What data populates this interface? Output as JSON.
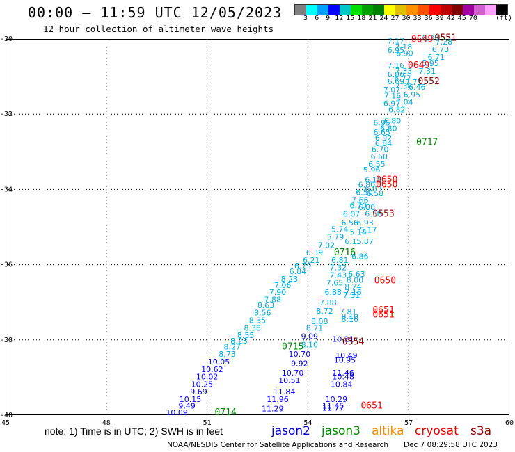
{
  "header": {
    "title": "00:00 — 11:59 UTC 12/05/2023",
    "subtitle": "12 hour collection of altimeter wave heights"
  },
  "colorbar": {
    "colors": [
      "#7f7f7f",
      "#00ffff",
      "#00a0ff",
      "#0000ff",
      "#00c8c8",
      "#00e000",
      "#00a000",
      "#008000",
      "#ffff00",
      "#e0c000",
      "#ff9000",
      "#ff5000",
      "#ff0000",
      "#c00000",
      "#800000",
      "#a000a0",
      "#d060d0",
      "#ffa0ff",
      "#000000"
    ],
    "ticks": [
      "3",
      "6",
      "9",
      "12",
      "15",
      "18",
      "21",
      "24",
      "27",
      "30",
      "33",
      "36",
      "39",
      "42",
      "45",
      "70"
    ],
    "unit": "(ft)"
  },
  "axes": {
    "lat_labels": [
      "-30",
      "-32",
      "-34",
      "-36",
      "-38",
      "-40"
    ],
    "lon_labels": [
      "45",
      "48",
      "51",
      "54",
      "57",
      "60"
    ]
  },
  "map": {
    "swh_ft_color": {
      "cyan": "#00aadd",
      "blue": "#0000ff",
      "green": "#008000",
      "red": "#ff0000",
      "darkred": "#800000"
    },
    "labels": [
      {
        "text": "7.17",
        "lat": -30.12,
        "lon": 56.62,
        "c": "cyan"
      },
      {
        "text": "6.95",
        "lat": -30.37,
        "lon": 56.62,
        "c": "cyan"
      },
      {
        "text": "7.18",
        "lat": -30.28,
        "lon": 56.85,
        "c": "cyan"
      },
      {
        "text": "6.90",
        "lat": -30.45,
        "lon": 56.88,
        "c": "cyan"
      },
      {
        "text": "6.73",
        "lat": -30.35,
        "lon": 57.95,
        "c": "cyan"
      },
      {
        "text": "6.71",
        "lat": -30.55,
        "lon": 57.82,
        "c": "cyan"
      },
      {
        "text": "7.28",
        "lat": -30.15,
        "lon": 58.05,
        "c": "cyan"
      },
      {
        "text": "6.35",
        "lat": -30.05,
        "lon": 57.65,
        "c": "cyan"
      },
      {
        "text": "7.16",
        "lat": -30.78,
        "lon": 56.62,
        "c": "cyan"
      },
      {
        "text": "5.95",
        "lat": -30.72,
        "lon": 57.65,
        "c": "cyan"
      },
      {
        "text": "7.33",
        "lat": -30.92,
        "lon": 56.85,
        "c": "cyan"
      },
      {
        "text": "7.31",
        "lat": -30.92,
        "lon": 57.55,
        "c": "cyan"
      },
      {
        "text": "6.86",
        "lat": -31.02,
        "lon": 56.62,
        "c": "cyan"
      },
      {
        "text": "6.77",
        "lat": -31.12,
        "lon": 56.82,
        "c": "cyan"
      },
      {
        "text": "6.69",
        "lat": -31.2,
        "lon": 56.62,
        "c": "cyan"
      },
      {
        "text": "7.71",
        "lat": -31.22,
        "lon": 57.15,
        "c": "cyan"
      },
      {
        "text": "6.46",
        "lat": -31.35,
        "lon": 57.25,
        "c": "cyan"
      },
      {
        "text": "7.38",
        "lat": -31.32,
        "lon": 56.85,
        "c": "cyan"
      },
      {
        "text": "7.07",
        "lat": -31.42,
        "lon": 56.5,
        "c": "cyan"
      },
      {
        "text": "6.95",
        "lat": -31.55,
        "lon": 57.1,
        "c": "cyan"
      },
      {
        "text": "7.16",
        "lat": -31.58,
        "lon": 56.52,
        "c": "cyan"
      },
      {
        "text": "7.04",
        "lat": -31.75,
        "lon": 56.88,
        "c": "cyan"
      },
      {
        "text": "6.97",
        "lat": -31.78,
        "lon": 56.5,
        "c": "cyan"
      },
      {
        "text": "6.82",
        "lat": -31.95,
        "lon": 56.65,
        "c": "cyan"
      },
      {
        "text": "6.80",
        "lat": -32.25,
        "lon": 56.52,
        "c": "cyan"
      },
      {
        "text": "6.95",
        "lat": -32.3,
        "lon": 56.2,
        "c": "cyan"
      },
      {
        "text": "6.80",
        "lat": -32.45,
        "lon": 56.4,
        "c": "cyan"
      },
      {
        "text": "6.65",
        "lat": -32.55,
        "lon": 56.2,
        "c": "cyan"
      },
      {
        "text": "6.92",
        "lat": -32.7,
        "lon": 56.25,
        "c": "cyan"
      },
      {
        "text": "6.84",
        "lat": -32.85,
        "lon": 56.25,
        "c": "cyan"
      },
      {
        "text": "6.70",
        "lat": -33.0,
        "lon": 56.15,
        "c": "cyan"
      },
      {
        "text": "6.60",
        "lat": -33.2,
        "lon": 56.12,
        "c": "cyan"
      },
      {
        "text": "6.55",
        "lat": -33.4,
        "lon": 56.05,
        "c": "cyan"
      },
      {
        "text": "5.96",
        "lat": -33.55,
        "lon": 55.9,
        "c": "cyan"
      },
      {
        "text": "6.18",
        "lat": -33.82,
        "lon": 55.95,
        "c": "cyan"
      },
      {
        "text": "6.80",
        "lat": -33.95,
        "lon": 55.75,
        "c": "cyan"
      },
      {
        "text": "6.83",
        "lat": -34.05,
        "lon": 55.95,
        "c": "cyan"
      },
      {
        "text": "6.50",
        "lat": -34.15,
        "lon": 55.68,
        "c": "cyan"
      },
      {
        "text": "6.58",
        "lat": -34.18,
        "lon": 56.0,
        "c": "cyan"
      },
      {
        "text": "7.66",
        "lat": -34.35,
        "lon": 55.55,
        "c": "cyan"
      },
      {
        "text": "6.70",
        "lat": -34.5,
        "lon": 55.5,
        "c": "cyan"
      },
      {
        "text": "6.80",
        "lat": -34.55,
        "lon": 55.75,
        "c": "cyan"
      },
      {
        "text": "6.07",
        "lat": -34.72,
        "lon": 55.3,
        "c": "cyan"
      },
      {
        "text": "6.58",
        "lat": -34.72,
        "lon": 55.95,
        "c": "cyan"
      },
      {
        "text": "6.56",
        "lat": -34.95,
        "lon": 55.25,
        "c": "cyan"
      },
      {
        "text": "6.93",
        "lat": -34.95,
        "lon": 55.7,
        "c": "cyan"
      },
      {
        "text": "5.74",
        "lat": -35.13,
        "lon": 54.95,
        "c": "cyan"
      },
      {
        "text": "5.14",
        "lat": -35.2,
        "lon": 55.5,
        "c": "cyan"
      },
      {
        "text": "5.17",
        "lat": -35.15,
        "lon": 55.8,
        "c": "cyan"
      },
      {
        "text": "5.79",
        "lat": -35.33,
        "lon": 54.82,
        "c": "cyan"
      },
      {
        "text": "6.15",
        "lat": -35.45,
        "lon": 55.35,
        "c": "cyan"
      },
      {
        "text": "5.87",
        "lat": -35.45,
        "lon": 55.7,
        "c": "cyan"
      },
      {
        "text": "7.02",
        "lat": -35.55,
        "lon": 54.55,
        "c": "cyan"
      },
      {
        "text": "6.39",
        "lat": -35.75,
        "lon": 54.2,
        "c": "cyan"
      },
      {
        "text": "6.86",
        "lat": -35.85,
        "lon": 55.55,
        "c": "cyan"
      },
      {
        "text": "6.21",
        "lat": -35.95,
        "lon": 54.1,
        "c": "cyan"
      },
      {
        "text": "6.81",
        "lat": -35.95,
        "lon": 54.95,
        "c": "cyan"
      },
      {
        "text": "6.79",
        "lat": -36.1,
        "lon": 53.85,
        "c": "cyan"
      },
      {
        "text": "7.32",
        "lat": -36.15,
        "lon": 54.9,
        "c": "cyan"
      },
      {
        "text": "6.84",
        "lat": -36.25,
        "lon": 53.7,
        "c": "cyan"
      },
      {
        "text": "7.43",
        "lat": -36.35,
        "lon": 54.9,
        "c": "cyan"
      },
      {
        "text": "6.63",
        "lat": -36.32,
        "lon": 55.45,
        "c": "cyan"
      },
      {
        "text": "8.23",
        "lat": -36.45,
        "lon": 53.45,
        "c": "cyan"
      },
      {
        "text": "8.00",
        "lat": -36.48,
        "lon": 55.4,
        "c": "cyan"
      },
      {
        "text": "7.65",
        "lat": -36.55,
        "lon": 54.8,
        "c": "cyan"
      },
      {
        "text": "7.06",
        "lat": -36.62,
        "lon": 53.25,
        "c": "cyan"
      },
      {
        "text": "8.24",
        "lat": -36.65,
        "lon": 55.35,
        "c": "cyan"
      },
      {
        "text": "7.90",
        "lat": -36.8,
        "lon": 53.1,
        "c": "cyan"
      },
      {
        "text": "6.88",
        "lat": -36.8,
        "lon": 54.75,
        "c": "cyan"
      },
      {
        "text": "7.16",
        "lat": -36.8,
        "lon": 55.35,
        "c": "cyan"
      },
      {
        "text": "7.31",
        "lat": -36.88,
        "lon": 55.3,
        "c": "cyan"
      },
      {
        "text": "7.88",
        "lat": -37.0,
        "lon": 52.95,
        "c": "cyan"
      },
      {
        "text": "7.88",
        "lat": -37.08,
        "lon": 54.6,
        "c": "cyan"
      },
      {
        "text": "8.63",
        "lat": -37.15,
        "lon": 52.75,
        "c": "cyan"
      },
      {
        "text": "8.72",
        "lat": -37.3,
        "lon": 54.5,
        "c": "cyan"
      },
      {
        "text": "7.81",
        "lat": -37.32,
        "lon": 55.2,
        "c": "cyan"
      },
      {
        "text": "8.56",
        "lat": -37.35,
        "lon": 52.65,
        "c": "cyan"
      },
      {
        "text": "8.10",
        "lat": -37.45,
        "lon": 55.25,
        "c": "cyan"
      },
      {
        "text": "8.16",
        "lat": -37.52,
        "lon": 55.25,
        "c": "cyan"
      },
      {
        "text": "8.35",
        "lat": -37.55,
        "lon": 52.5,
        "c": "cyan"
      },
      {
        "text": "8.08",
        "lat": -37.58,
        "lon": 54.35,
        "c": "cyan"
      },
      {
        "text": "8.38",
        "lat": -37.75,
        "lon": 52.35,
        "c": "cyan"
      },
      {
        "text": "8.71",
        "lat": -37.75,
        "lon": 54.2,
        "c": "cyan"
      },
      {
        "text": "8.55",
        "lat": -37.95,
        "lon": 52.15,
        "c": "cyan"
      },
      {
        "text": "9.09",
        "lat": -37.98,
        "lon": 54.05,
        "c": "blue"
      },
      {
        "text": "8.23",
        "lat": -38.1,
        "lon": 51.95,
        "c": "cyan"
      },
      {
        "text": "8.10",
        "lat": -38.2,
        "lon": 54.05,
        "c": "cyan"
      },
      {
        "text": "8.27",
        "lat": -38.25,
        "lon": 51.75,
        "c": "cyan"
      },
      {
        "text": "10.21",
        "lat": -38.05,
        "lon": 55.05,
        "c": "blue"
      },
      {
        "text": "8.73",
        "lat": -38.45,
        "lon": 51.6,
        "c": "cyan"
      },
      {
        "text": "10.70",
        "lat": -38.45,
        "lon": 53.75,
        "c": "blue"
      },
      {
        "text": "10.49",
        "lat": -38.48,
        "lon": 55.15,
        "c": "blue"
      },
      {
        "text": "10.05",
        "lat": -38.65,
        "lon": 51.35,
        "c": "blue"
      },
      {
        "text": "9.92",
        "lat": -38.7,
        "lon": 53.75,
        "c": "blue"
      },
      {
        "text": "10.95",
        "lat": -38.6,
        "lon": 55.1,
        "c": "blue"
      },
      {
        "text": "10.62",
        "lat": -38.85,
        "lon": 51.15,
        "c": "blue"
      },
      {
        "text": "10.70",
        "lat": -38.95,
        "lon": 53.55,
        "c": "blue"
      },
      {
        "text": "11.46",
        "lat": -38.95,
        "lon": 55.05,
        "c": "blue"
      },
      {
        "text": "10.02",
        "lat": -39.05,
        "lon": 51.0,
        "c": "blue"
      },
      {
        "text": "10.51",
        "lat": -39.15,
        "lon": 53.45,
        "c": "blue"
      },
      {
        "text": "10.48",
        "lat": -39.05,
        "lon": 55.05,
        "c": "blue"
      },
      {
        "text": "10.25",
        "lat": -39.25,
        "lon": 50.85,
        "c": "blue"
      },
      {
        "text": "10.84",
        "lat": -39.25,
        "lon": 55.0,
        "c": "blue"
      },
      {
        "text": "9.69",
        "lat": -39.45,
        "lon": 50.75,
        "c": "blue"
      },
      {
        "text": "11.84",
        "lat": -39.45,
        "lon": 53.3,
        "c": "blue"
      },
      {
        "text": "10.15",
        "lat": -39.65,
        "lon": 50.5,
        "c": "blue"
      },
      {
        "text": "11.96",
        "lat": -39.65,
        "lon": 53.1,
        "c": "blue"
      },
      {
        "text": "10.29",
        "lat": -39.65,
        "lon": 54.85,
        "c": "blue"
      },
      {
        "text": "9.49",
        "lat": -39.82,
        "lon": 50.4,
        "c": "blue"
      },
      {
        "text": "11.29",
        "lat": -39.9,
        "lon": 52.95,
        "c": "blue"
      },
      {
        "text": "11.45",
        "lat": -39.82,
        "lon": 54.75,
        "c": "blue"
      },
      {
        "text": "11.77",
        "lat": -39.88,
        "lon": 54.75,
        "c": "blue"
      },
      {
        "text": "10.09",
        "lat": -40.0,
        "lon": 50.1,
        "c": "blue"
      }
    ],
    "times": [
      {
        "text": "0551",
        "lat": -30.05,
        "lon": 58.1,
        "c": "darkred"
      },
      {
        "text": "0649",
        "lat": -30.08,
        "lon": 57.4,
        "c": "red"
      },
      {
        "text": "0649",
        "lat": -30.78,
        "lon": 57.3,
        "c": "red"
      },
      {
        "text": "0552",
        "lat": -31.2,
        "lon": 57.6,
        "c": "darkred"
      },
      {
        "text": "0717",
        "lat": -32.82,
        "lon": 57.55,
        "c": "green"
      },
      {
        "text": "0650",
        "lat": -33.82,
        "lon": 56.35,
        "c": "red"
      },
      {
        "text": "0650",
        "lat": -33.95,
        "lon": 56.35,
        "c": "red"
      },
      {
        "text": "0553",
        "lat": -34.72,
        "lon": 56.25,
        "c": "darkred"
      },
      {
        "text": "0716",
        "lat": -35.75,
        "lon": 55.1,
        "c": "green"
      },
      {
        "text": "0650",
        "lat": -36.5,
        "lon": 56.3,
        "c": "red"
      },
      {
        "text": "0651",
        "lat": -37.28,
        "lon": 56.25,
        "c": "red"
      },
      {
        "text": "0651",
        "lat": -37.4,
        "lon": 56.25,
        "c": "red"
      },
      {
        "text": "0554",
        "lat": -38.12,
        "lon": 55.35,
        "c": "darkred"
      },
      {
        "text": "0715",
        "lat": -38.25,
        "lon": 53.55,
        "c": "green"
      },
      {
        "text": "0651",
        "lat": -39.82,
        "lon": 55.9,
        "c": "red"
      },
      {
        "text": "0714",
        "lat": -40.0,
        "lon": 51.55,
        "c": "green"
      }
    ]
  },
  "legend": {
    "note": "note: 1) Time is in UTC; 2) SWH is in feet",
    "satellites": [
      {
        "name": "jason2",
        "color": "#0000cc"
      },
      {
        "name": "jason3",
        "color": "#008800"
      },
      {
        "name": "altika",
        "color": "#ff8800"
      },
      {
        "name": "cryosat",
        "color": "#dd0000"
      },
      {
        "name": "s3a",
        "color": "#880000"
      }
    ]
  },
  "footer": {
    "credit": "NOAA/NESDIS Center for Satellite Applications and Research",
    "timestamp": "Dec  7 08:29:58 UTC 2023"
  }
}
